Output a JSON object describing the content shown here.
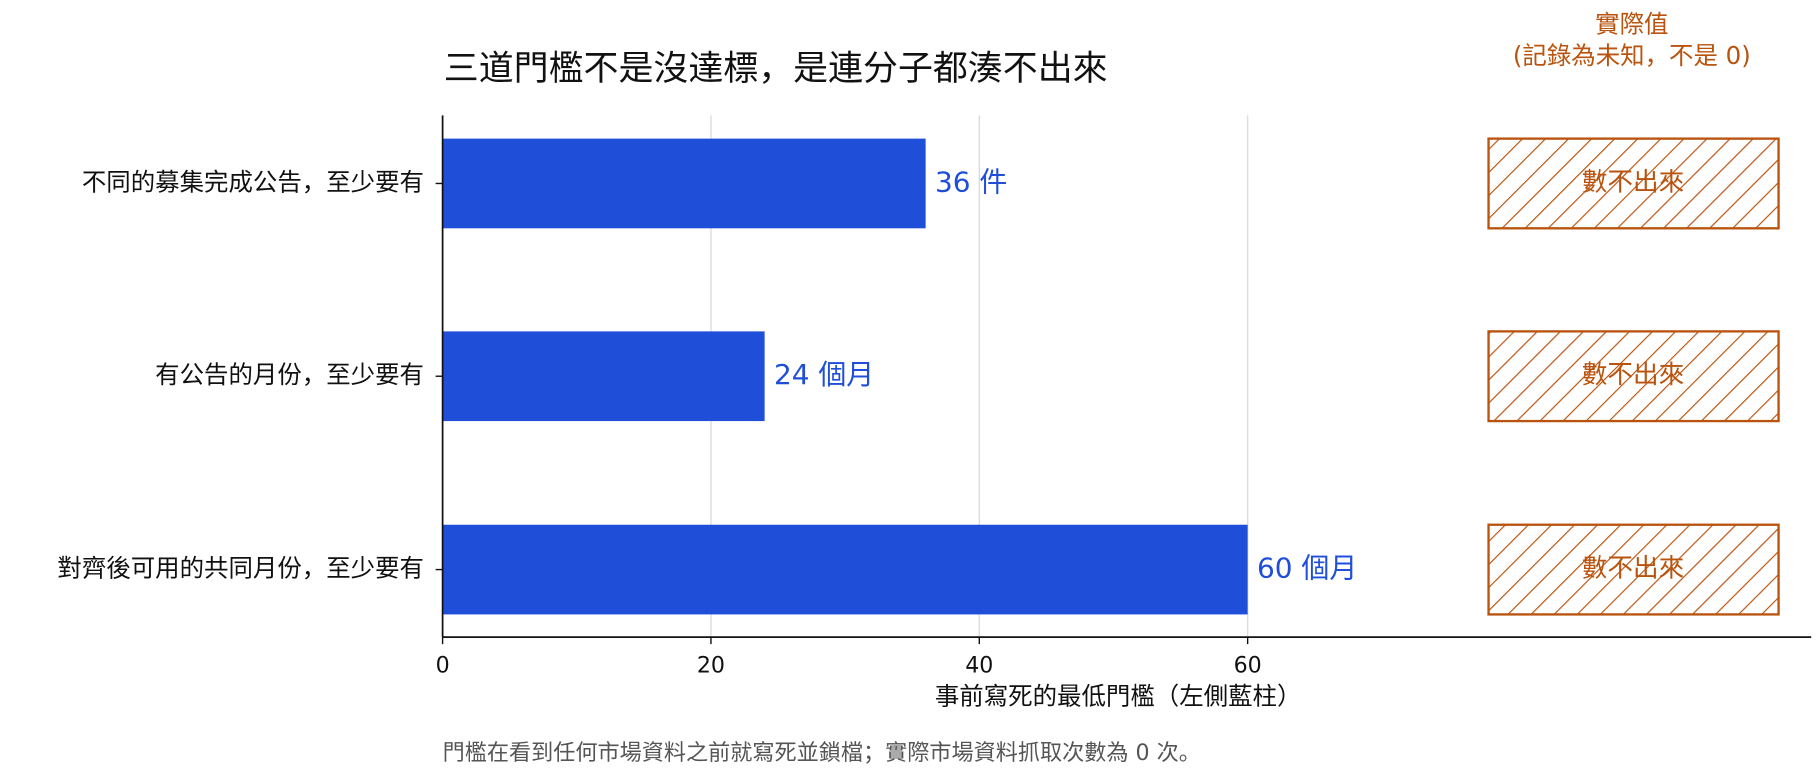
{
  "chart_data": {
    "type": "hbar",
    "title": "三道門檻不是沒達標，是連分子都湊不出來",
    "categories": [
      "不同的募集完成公告，至少要有",
      "有公告的月份，至少要有",
      "對齊後可用的共同月份，至少要有"
    ],
    "values": [
      36,
      24,
      60
    ],
    "value_labels": [
      "36 件",
      "24 個月",
      "60 個月"
    ],
    "color": "#1f4fd8",
    "xlim": [
      0,
      102
    ],
    "xticks": [
      0,
      20,
      40,
      60
    ],
    "xlabel": "事前寫死的最低門檻（左側藍柱）",
    "grid": true,
    "actual_title": "實際值",
    "actual_subtitle": "(記錄為未知，不是 0)",
    "actual_labels": [
      "數不出來",
      "數不出來",
      "數不出來"
    ],
    "actual_color": "#b9530e",
    "footnote": "門檻在看到任何市場資料之前就寫死並鎖檔；實際市場資料抓取次數為 0 次。"
  }
}
